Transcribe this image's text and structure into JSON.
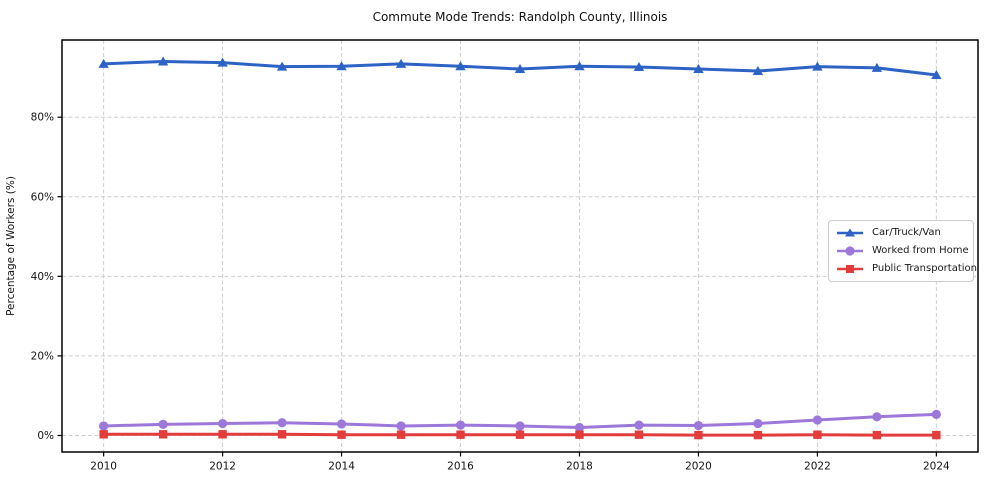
{
  "chart_data": {
    "type": "line",
    "title": "Commute Mode Trends: Randolph County, Illinois",
    "xlabel": "",
    "ylabel": "Percentage of Workers (%)",
    "x": [
      2010,
      2011,
      2012,
      2013,
      2014,
      2015,
      2016,
      2017,
      2018,
      2019,
      2020,
      2021,
      2022,
      2023,
      2024
    ],
    "series": [
      {
        "name": "Car/Truck/Van",
        "color": "#2d63c5",
        "marker": "triangle",
        "values": [
          93.4,
          94.0,
          93.7,
          92.7,
          92.8,
          93.4,
          92.8,
          92.1,
          92.8,
          92.6,
          92.1,
          91.6,
          92.7,
          92.4,
          90.6
        ]
      },
      {
        "name": "Worked from Home",
        "color": "#9b78d9",
        "marker": "circle",
        "values": [
          2.4,
          2.8,
          3.0,
          3.2,
          2.9,
          2.4,
          2.6,
          2.4,
          2.0,
          2.6,
          2.5,
          3.0,
          3.9,
          4.7,
          5.3
        ]
      },
      {
        "name": "Public Transportation",
        "color": "#e23c3c",
        "marker": "square",
        "values": [
          0.3,
          0.3,
          0.3,
          0.3,
          0.2,
          0.2,
          0.2,
          0.2,
          0.2,
          0.2,
          0.1,
          0.1,
          0.2,
          0.1,
          0.1
        ]
      }
    ],
    "xticks": [
      2010,
      2012,
      2014,
      2016,
      2018,
      2020,
      2022,
      2024
    ],
    "xtick_labels": [
      "2010",
      "2012",
      "2014",
      "2016",
      "2018",
      "2020",
      "2022",
      "2024"
    ],
    "yticks": [
      0,
      20,
      40,
      60,
      80
    ],
    "ytick_labels": [
      "0%",
      "20%",
      "40%",
      "60%",
      "80%"
    ],
    "xlim": [
      2009.3,
      2024.7
    ],
    "ylim": [
      -4.15,
      99.4
    ],
    "grid": true,
    "grid_style": "dashed",
    "legend_position": "center right"
  }
}
